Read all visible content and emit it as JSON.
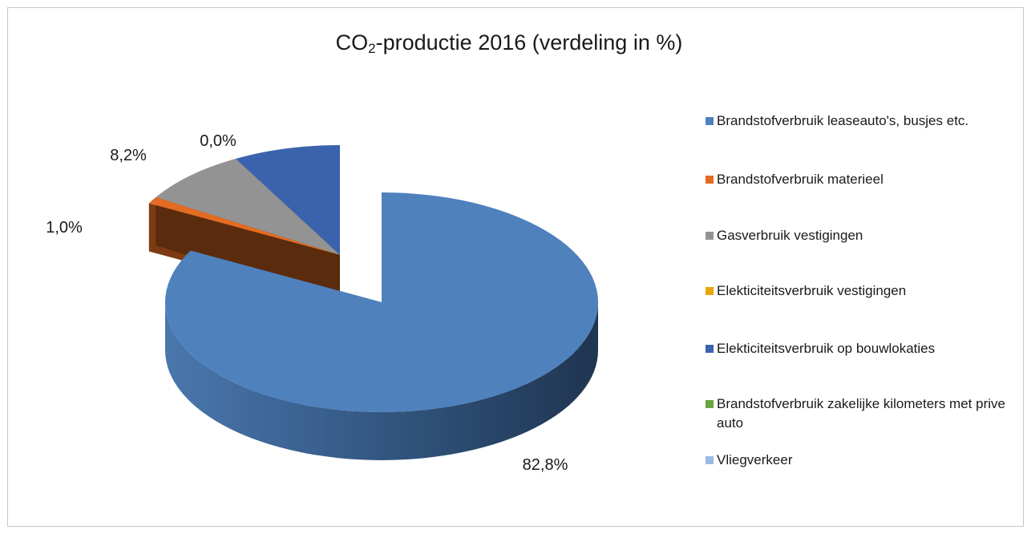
{
  "chart_data": {
    "type": "pie",
    "three_d": true,
    "exploded": true,
    "title": {
      "main": "CO",
      "subscript": "2",
      "rest": "-productie 2016 (verdeling in %)"
    },
    "legend_position": "right",
    "slices": [
      {
        "label": "Brandstofverbruik leaseauto's, busjes etc.",
        "value": 82.8,
        "value_label": "82,8%",
        "color": "#4f81bd"
      },
      {
        "label": "Brandstofverbruik materieel",
        "value": 1.0,
        "value_label": "1,0%",
        "color": "#e46c22"
      },
      {
        "label": "Gasverbruik vestigingen",
        "value": 8.2,
        "value_label": "8,2%",
        "color": "#939393"
      },
      {
        "label": "Elekticiteitsverbruik vestigingen",
        "value": 0.0,
        "value_label": "0,0%",
        "color": "#e6a708"
      },
      {
        "label": "Elekticiteitsverbruik op bouwlokaties",
        "value": 8.0,
        "value_label": "",
        "color": "#3b63ad"
      },
      {
        "label": "Brandstofverbruik zakelijke kilometers met prive auto",
        "value": 0.0,
        "value_label": "",
        "color": "#6aa440"
      },
      {
        "label": "Vliegverkeer",
        "value": 0.0,
        "value_label": "",
        "color": "#9cbbe3"
      }
    ]
  }
}
